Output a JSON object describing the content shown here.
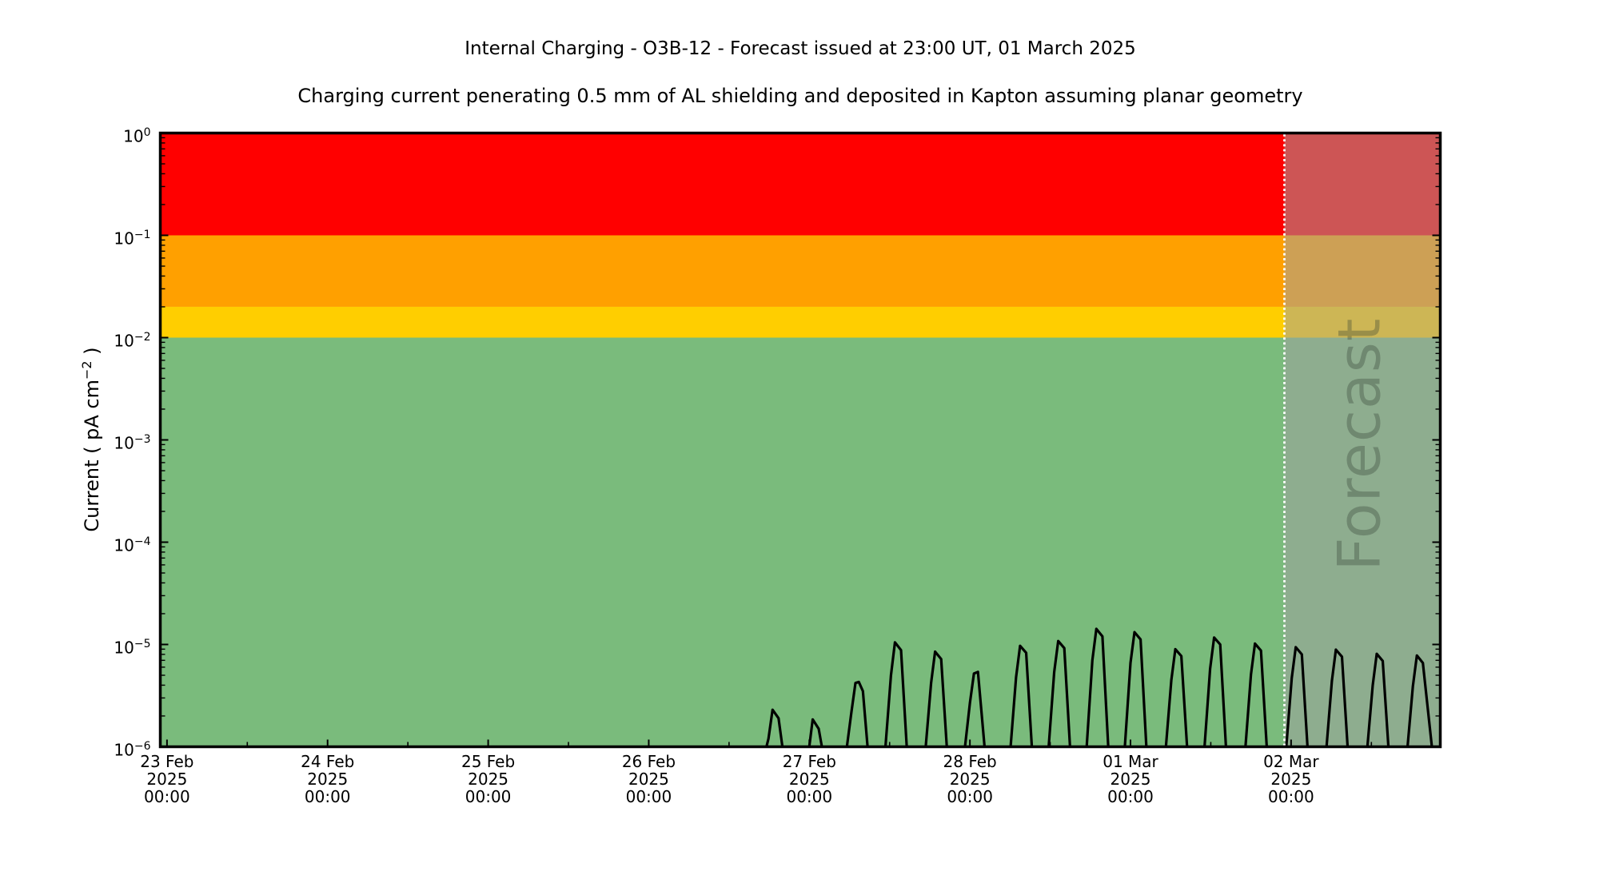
{
  "title": "Internal Charging - O3B-12 - Forecast issued at 23:00 UT, 01 March 2025",
  "subtitle": "Charging current penerating 0.5 mm of AL shielding and deposited in Kapton assuming planar geometry",
  "y_axis": {
    "label_prefix": "Current ( pA cm",
    "label_sup": "−2",
    "label_suffix": " )",
    "tick_base": "10",
    "tick_exponents": [
      0,
      -1,
      -2,
      -3,
      -4,
      -5,
      -6
    ]
  },
  "x_axis": {
    "ticks": [
      {
        "hour": 0,
        "lines": [
          "23 Feb",
          "2025",
          "00:00"
        ]
      },
      {
        "hour": 24,
        "lines": [
          "24 Feb",
          "2025",
          "00:00"
        ]
      },
      {
        "hour": 48,
        "lines": [
          "25 Feb",
          "2025",
          "00:00"
        ]
      },
      {
        "hour": 72,
        "lines": [
          "26 Feb",
          "2025",
          "00:00"
        ]
      },
      {
        "hour": 96,
        "lines": [
          "27 Feb",
          "2025",
          "00:00"
        ]
      },
      {
        "hour": 120,
        "lines": [
          "28 Feb",
          "2025",
          "00:00"
        ]
      },
      {
        "hour": 144,
        "lines": [
          "01 Mar",
          "2025",
          "00:00"
        ]
      },
      {
        "hour": 168,
        "lines": [
          "02 Mar",
          "2025",
          "00:00"
        ]
      }
    ],
    "minor_tick_hours": [
      12,
      36,
      60,
      84,
      108,
      132,
      156,
      180
    ]
  },
  "forecast": {
    "label": "Forecast",
    "start_hour": 167,
    "overlay_color": "rgba(160,160,160,0.53)",
    "divider_color": "#ffffff"
  },
  "chart_data": {
    "type": "line",
    "title": "Internal Charging - O3B-12 - Forecast issued at 23:00 UT, 01 March 2025",
    "subtitle": "Charging current penerating 0.5 mm of AL shielding and deposited in Kapton assuming planar geometry",
    "xlabel": "",
    "ylabel": "Current ( pA cm⁻² )",
    "x_unit": "hours since 23 Feb 2025 00:00 UT",
    "yscale": "log",
    "ylim": [
      1e-06,
      1
    ],
    "xlim": [
      -1,
      190.3
    ],
    "grid": false,
    "legend": false,
    "thresholds": [
      {
        "name": "red",
        "from": 0.1,
        "to": 1,
        "color": "#FF0000"
      },
      {
        "name": "orange",
        "from": 0.02,
        "to": 0.1,
        "color": "#FFA000"
      },
      {
        "name": "yellow",
        "from": 0.01,
        "to": 0.02,
        "color": "#FFCE00"
      },
      {
        "name": "green",
        "from": 1e-06,
        "to": 0.01,
        "color": "#7ABB7C"
      }
    ],
    "series": [
      {
        "name": "charging_current",
        "color": "#000000",
        "points": [
          [
            89.0,
            7e-07
          ],
          [
            89.9,
            1.2e-06
          ],
          [
            90.5,
            2.3e-06
          ],
          [
            91.4,
            1.9e-06
          ],
          [
            92.3,
            7e-07
          ],
          [
            95.0,
            7e-07
          ],
          [
            95.9,
            9e-07
          ],
          [
            96.5,
            1.85e-06
          ],
          [
            97.4,
            1.5e-06
          ],
          [
            98.3,
            7e-07
          ],
          [
            101.3,
            7e-07
          ],
          [
            102.3,
            2.2e-06
          ],
          [
            102.9,
            4.2e-06
          ],
          [
            103.4,
            4.3e-06
          ],
          [
            104.0,
            3.5e-06
          ],
          [
            104.9,
            7e-07
          ],
          [
            107.2,
            7e-07
          ],
          [
            108.2,
            5e-06
          ],
          [
            108.8,
            1.05e-05
          ],
          [
            109.7,
            8.8e-06
          ],
          [
            110.7,
            7e-07
          ],
          [
            113.2,
            7e-07
          ],
          [
            114.2,
            4.2e-06
          ],
          [
            114.8,
            8.5e-06
          ],
          [
            115.7,
            7.2e-06
          ],
          [
            116.7,
            7e-07
          ],
          [
            119.0,
            7e-07
          ],
          [
            120.0,
            2.7e-06
          ],
          [
            120.6,
            5.2e-06
          ],
          [
            121.2,
            5.4e-06
          ],
          [
            122.4,
            7e-07
          ],
          [
            125.9,
            7e-07
          ],
          [
            126.9,
            4.8e-06
          ],
          [
            127.5,
            9.7e-06
          ],
          [
            128.4,
            8.3e-06
          ],
          [
            129.4,
            7e-07
          ],
          [
            131.6,
            7e-07
          ],
          [
            132.6,
            5.4e-06
          ],
          [
            133.2,
            1.08e-05
          ],
          [
            134.1,
            9.2e-06
          ],
          [
            135.1,
            7e-07
          ],
          [
            137.3,
            7e-07
          ],
          [
            138.3,
            7e-06
          ],
          [
            138.9,
            1.42e-05
          ],
          [
            139.8,
            1.2e-05
          ],
          [
            140.8,
            7e-07
          ],
          [
            143.0,
            7e-07
          ],
          [
            144.0,
            6.6e-06
          ],
          [
            144.6,
            1.32e-05
          ],
          [
            145.5,
            1.12e-05
          ],
          [
            146.5,
            7e-07
          ],
          [
            149.1,
            7e-07
          ],
          [
            150.1,
            4.5e-06
          ],
          [
            150.7,
            9e-06
          ],
          [
            151.6,
            7.7e-06
          ],
          [
            152.6,
            7e-07
          ],
          [
            154.9,
            7e-07
          ],
          [
            155.9,
            5.8e-06
          ],
          [
            156.5,
            1.17e-05
          ],
          [
            157.4,
            1e-05
          ],
          [
            158.4,
            7e-07
          ],
          [
            161.0,
            7e-07
          ],
          [
            162.0,
            5.1e-06
          ],
          [
            162.6,
            1.02e-05
          ],
          [
            163.5,
            8.7e-06
          ],
          [
            164.5,
            7e-07
          ],
          [
            167.1,
            7e-07
          ],
          [
            168.1,
            4.7e-06
          ],
          [
            168.7,
            9.4e-06
          ],
          [
            169.6,
            8e-06
          ],
          [
            170.6,
            7e-07
          ],
          [
            173.1,
            7e-07
          ],
          [
            174.1,
            4.4e-06
          ],
          [
            174.7,
            8.9e-06
          ],
          [
            175.6,
            7.6e-06
          ],
          [
            176.6,
            7e-07
          ],
          [
            179.2,
            7e-07
          ],
          [
            180.2,
            4e-06
          ],
          [
            180.8,
            8.1e-06
          ],
          [
            181.7,
            6.9e-06
          ],
          [
            182.7,
            7e-07
          ],
          [
            185.2,
            7e-07
          ],
          [
            186.2,
            3.9e-06
          ],
          [
            186.8,
            7.8e-06
          ],
          [
            187.7,
            6.6e-06
          ],
          [
            189.3,
            7e-07
          ]
        ]
      }
    ]
  }
}
